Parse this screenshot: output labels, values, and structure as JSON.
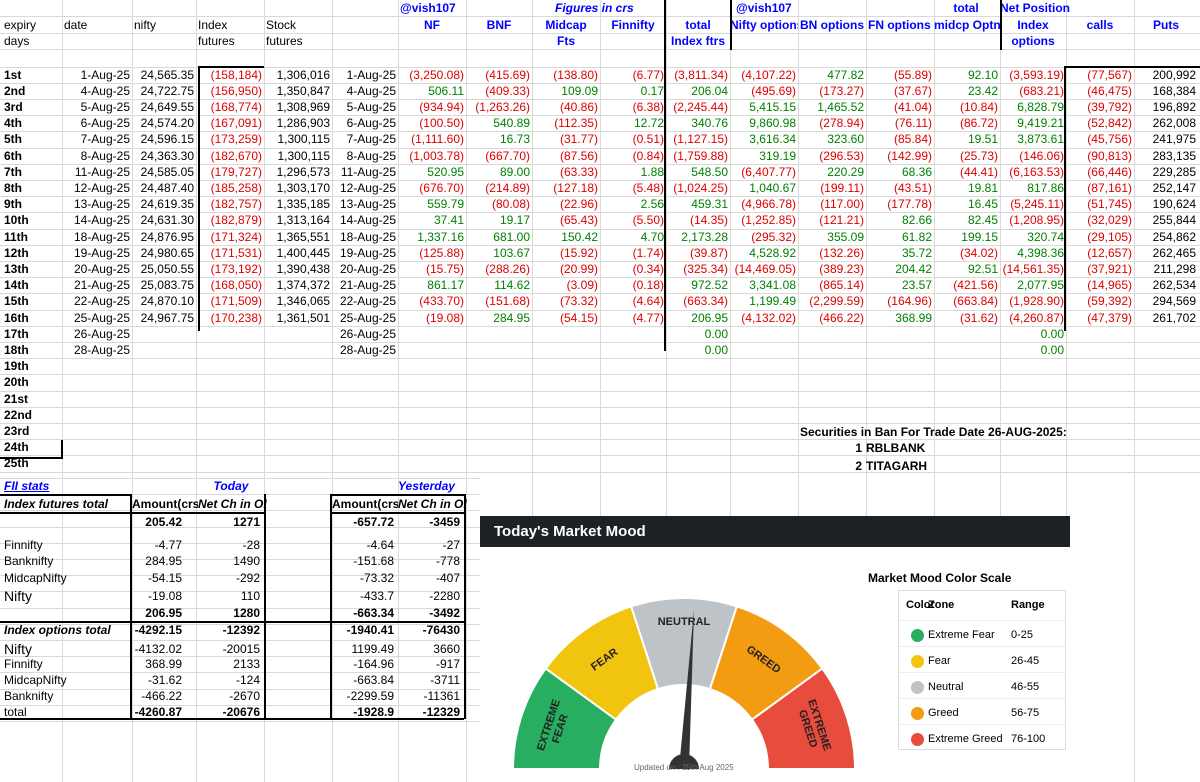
{
  "header_top": {
    "vish1": "@vish107",
    "figures": "Figures in crs",
    "vish2": "@vish107",
    "total": "total",
    "net_position": "Net Position"
  },
  "headers": {
    "expiry": "expiry",
    "days": "days",
    "date": "date",
    "nifty": "nifty",
    "index1": "Index",
    "index2": "futures",
    "stock1": "Stock",
    "stock2": "futures",
    "nf": "NF",
    "bnf": "BNF",
    "midcap1": "Midcap",
    "midcap2": "Fts",
    "finnifty": "Finnifty",
    "total1": "total",
    "total2": "Index ftrs",
    "nifty_opt": "Nifty options",
    "bn_opt": "BN options",
    "fn_opt": "FN options",
    "midcp_opt": "midcp Optns",
    "idx_opt1": "Index",
    "idx_opt2": "options",
    "calls": "calls",
    "puts": "Puts"
  },
  "rows": [
    {
      "label": "1st",
      "date": "1-Aug-25",
      "nifty": "24,565.35",
      "idx": "(158,184)",
      "stk": "1,306,016",
      "d2": "1-Aug-25",
      "nf": "(3,250.08)",
      "bnf": "(415.69)",
      "mid": "(138.80)",
      "fin": "(6.77)",
      "tot": "(3,811.34)",
      "nopt": "(4,107.22)",
      "bopt": "477.82",
      "fopt": "(55.89)",
      "mopt": "92.10",
      "iopt": "(3,593.19)",
      "calls": "(77,567)",
      "puts": "200,992"
    },
    {
      "label": "2nd",
      "date": "4-Aug-25",
      "nifty": "24,722.75",
      "idx": "(156,950)",
      "stk": "1,350,847",
      "d2": "4-Aug-25",
      "nf": "506.11",
      "bnf": "(409.33)",
      "mid": "109.09",
      "fin": "0.17",
      "tot": "206.04",
      "nopt": "(495.69)",
      "bopt": "(173.27)",
      "fopt": "(37.67)",
      "mopt": "23.42",
      "iopt": "(683.21)",
      "calls": "(46,475)",
      "puts": "168,384"
    },
    {
      "label": "3rd",
      "date": "5-Aug-25",
      "nifty": "24,649.55",
      "idx": "(168,774)",
      "stk": "1,308,969",
      "d2": "5-Aug-25",
      "nf": "(934.94)",
      "bnf": "(1,263.26)",
      "mid": "(40.86)",
      "fin": "(6.38)",
      "tot": "(2,245.44)",
      "nopt": "5,415.15",
      "bopt": "1,465.52",
      "fopt": "(41.04)",
      "mopt": "(10.84)",
      "iopt": "6,828.79",
      "calls": "(39,792)",
      "puts": "196,892"
    },
    {
      "label": "4th",
      "date": "6-Aug-25",
      "nifty": "24,574.20",
      "idx": "(167,091)",
      "stk": "1,286,903",
      "d2": "6-Aug-25",
      "nf": "(100.50)",
      "bnf": "540.89",
      "mid": "(112.35)",
      "fin": "12.72",
      "tot": "340.76",
      "nopt": "9,860.98",
      "bopt": "(278.94)",
      "fopt": "(76.11)",
      "mopt": "(86.72)",
      "iopt": "9,419.21",
      "calls": "(52,842)",
      "puts": "262,008"
    },
    {
      "label": "5th",
      "date": "7-Aug-25",
      "nifty": "24,596.15",
      "idx": "(173,259)",
      "stk": "1,300,115",
      "d2": "7-Aug-25",
      "nf": "(1,111.60)",
      "bnf": "16.73",
      "mid": "(31.77)",
      "fin": "(0.51)",
      "tot": "(1,127.15)",
      "nopt": "3,616.34",
      "bopt": "323.60",
      "fopt": "(85.84)",
      "mopt": "19.51",
      "iopt": "3,873.61",
      "calls": "(45,756)",
      "puts": "241,975"
    },
    {
      "label": "6th",
      "date": "8-Aug-25",
      "nifty": "24,363.30",
      "idx": "(182,670)",
      "stk": "1,300,115",
      "d2": "8-Aug-25",
      "nf": "(1,003.78)",
      "bnf": "(667.70)",
      "mid": "(87.56)",
      "fin": "(0.84)",
      "tot": "(1,759.88)",
      "nopt": "319.19",
      "bopt": "(296.53)",
      "fopt": "(142.99)",
      "mopt": "(25.73)",
      "iopt": "(146.06)",
      "calls": "(90,813)",
      "puts": "283,135"
    },
    {
      "label": "7th",
      "date": "11-Aug-25",
      "nifty": "24,585.05",
      "idx": "(179,727)",
      "stk": "1,296,573",
      "d2": "11-Aug-25",
      "nf": "520.95",
      "bnf": "89.00",
      "mid": "(63.33)",
      "fin": "1.88",
      "tot": "548.50",
      "nopt": "(6,407.77)",
      "bopt": "220.29",
      "fopt": "68.36",
      "mopt": "(44.41)",
      "iopt": "(6,163.53)",
      "calls": "(66,446)",
      "puts": "229,285"
    },
    {
      "label": "8th",
      "date": "12-Aug-25",
      "nifty": "24,487.40",
      "idx": "(185,258)",
      "stk": "1,303,170",
      "d2": "12-Aug-25",
      "nf": "(676.70)",
      "bnf": "(214.89)",
      "mid": "(127.18)",
      "fin": "(5.48)",
      "tot": "(1,024.25)",
      "nopt": "1,040.67",
      "bopt": "(199.11)",
      "fopt": "(43.51)",
      "mopt": "19.81",
      "iopt": "817.86",
      "calls": "(87,161)",
      "puts": "252,147"
    },
    {
      "label": "9th",
      "date": "13-Aug-25",
      "nifty": "24,619.35",
      "idx": "(182,757)",
      "stk": "1,335,185",
      "d2": "13-Aug-25",
      "nf": "559.79",
      "bnf": "(80.08)",
      "mid": "(22.96)",
      "fin": "2.56",
      "tot": "459.31",
      "nopt": "(4,966.78)",
      "bopt": "(117.00)",
      "fopt": "(177.78)",
      "mopt": "16.45",
      "iopt": "(5,245.11)",
      "calls": "(51,745)",
      "puts": "190,624"
    },
    {
      "label": "10th",
      "date": "14-Aug-25",
      "nifty": "24,631.30",
      "idx": "(182,879)",
      "stk": "1,313,164",
      "d2": "14-Aug-25",
      "nf": "37.41",
      "bnf": "19.17",
      "mid": "(65.43)",
      "fin": "(5.50)",
      "tot": "(14.35)",
      "nopt": "(1,252.85)",
      "bopt": "(121.21)",
      "fopt": "82.66",
      "mopt": "82.45",
      "iopt": "(1,208.95)",
      "calls": "(32,029)",
      "puts": "255,844"
    },
    {
      "label": "11th",
      "date": "18-Aug-25",
      "nifty": "24,876.95",
      "idx": "(171,324)",
      "stk": "1,365,551",
      "d2": "18-Aug-25",
      "nf": "1,337.16",
      "bnf": "681.00",
      "mid": "150.42",
      "fin": "4.70",
      "tot": "2,173.28",
      "nopt": "(295.32)",
      "bopt": "355.09",
      "fopt": "61.82",
      "mopt": "199.15",
      "iopt": "320.74",
      "calls": "(29,105)",
      "puts": "254,862"
    },
    {
      "label": "12th",
      "date": "19-Aug-25",
      "nifty": "24,980.65",
      "idx": "(171,531)",
      "stk": "1,400,445",
      "d2": "19-Aug-25",
      "nf": "(125.88)",
      "bnf": "103.67",
      "mid": "(15.92)",
      "fin": "(1.74)",
      "tot": "(39.87)",
      "nopt": "4,528.92",
      "bopt": "(132.26)",
      "fopt": "35.72",
      "mopt": "(34.02)",
      "iopt": "4,398.36",
      "calls": "(12,657)",
      "puts": "262,465"
    },
    {
      "label": "13th",
      "date": "20-Aug-25",
      "nifty": "25,050.55",
      "idx": "(173,192)",
      "stk": "1,390,438",
      "d2": "20-Aug-25",
      "nf": "(15.75)",
      "bnf": "(288.26)",
      "mid": "(20.99)",
      "fin": "(0.34)",
      "tot": "(325.34)",
      "nopt": "(14,469.05)",
      "bopt": "(389.23)",
      "fopt": "204.42",
      "mopt": "92.51",
      "iopt": "(14,561.35)",
      "calls": "(37,921)",
      "puts": "211,298"
    },
    {
      "label": "14th",
      "date": "21-Aug-25",
      "nifty": "25,083.75",
      "idx": "(168,050)",
      "stk": "1,374,372",
      "d2": "21-Aug-25",
      "nf": "861.17",
      "bnf": "114.62",
      "mid": "(3.09)",
      "fin": "(0.18)",
      "tot": "972.52",
      "nopt": "3,341.08",
      "bopt": "(865.14)",
      "fopt": "23.57",
      "mopt": "(421.56)",
      "iopt": "2,077.95",
      "calls": "(14,965)",
      "puts": "262,534"
    },
    {
      "label": "15th",
      "date": "22-Aug-25",
      "nifty": "24,870.10",
      "idx": "(171,509)",
      "stk": "1,346,065",
      "d2": "22-Aug-25",
      "nf": "(433.70)",
      "bnf": "(151.68)",
      "mid": "(73.32)",
      "fin": "(4.64)",
      "tot": "(663.34)",
      "nopt": "1,199.49",
      "bopt": "(2,299.59)",
      "fopt": "(164.96)",
      "mopt": "(663.84)",
      "iopt": "(1,928.90)",
      "calls": "(59,392)",
      "puts": "294,569"
    },
    {
      "label": "16th",
      "date": "25-Aug-25",
      "nifty": "24,967.75",
      "idx": "(170,238)",
      "stk": "1,361,501",
      "d2": "25-Aug-25",
      "nf": "(19.08)",
      "bnf": "284.95",
      "mid": "(54.15)",
      "fin": "(4.77)",
      "tot": "206.95",
      "nopt": "(4,132.02)",
      "bopt": "(466.22)",
      "fopt": "368.99",
      "mopt": "(31.62)",
      "iopt": "(4,260.87)",
      "calls": "(47,379)",
      "puts": "261,702"
    },
    {
      "label": "17th",
      "date": "26-Aug-25",
      "d2": "26-Aug-25",
      "tot": "0.00",
      "iopt": "0.00"
    },
    {
      "label": "18th",
      "date": "28-Aug-25",
      "d2": "28-Aug-25",
      "tot": "0.00",
      "iopt": "0.00"
    },
    {
      "label": "19th"
    },
    {
      "label": "20th"
    },
    {
      "label": "21st"
    },
    {
      "label": "22nd"
    },
    {
      "label": "23rd"
    },
    {
      "label": "24th"
    },
    {
      "label": "25th"
    }
  ],
  "ban": {
    "title": "Securities in Ban For Trade Date 26-AUG-2025:",
    "items": [
      {
        "num": "1",
        "name": "RBLBANK"
      },
      {
        "num": "2",
        "name": "TITAGARH"
      }
    ]
  },
  "fii": {
    "title": "FII stats",
    "today": "Today",
    "yesterday": "Yesterday",
    "col1": "Index futures total",
    "col_amt": "Amount(crs",
    "col_ch": "Net Ch in OI",
    "rows": [
      {
        "label": "",
        "t_amt": "205.42",
        "t_ch": "1271",
        "y_amt": "-657.72",
        "y_ch": "-3459"
      },
      {
        "label": "",
        "t_amt": "",
        "t_ch": "",
        "y_amt": "",
        "y_ch": ""
      },
      {
        "label": "Finnifty",
        "t_amt": "-4.77",
        "t_ch": "-28",
        "y_amt": "-4.64",
        "y_ch": "-27"
      },
      {
        "label": "Banknifty",
        "t_amt": "284.95",
        "t_ch": "1490",
        "y_amt": "-151.68",
        "y_ch": "-778"
      },
      {
        "label": "MidcapNifty",
        "t_amt": "-54.15",
        "t_ch": "-292",
        "y_amt": "-73.32",
        "y_ch": "-407"
      },
      {
        "label": "Nifty",
        "t_amt": "-19.08",
        "t_ch": "110",
        "y_amt": "-433.7",
        "y_ch": "-2280"
      },
      {
        "label": "",
        "t_amt": "206.95",
        "t_ch": "1280",
        "y_amt": "-663.34",
        "y_ch": "-3492"
      },
      {
        "label": "Index options total",
        "t_amt": "-4292.15",
        "t_ch": "-12392",
        "y_amt": "-1940.41",
        "y_ch": "-76430"
      },
      {
        "label": "Nifty",
        "t_amt": "-4132.02",
        "t_ch": "-20015",
        "y_amt": "1199.49",
        "y_ch": "3660"
      },
      {
        "label": "Finnifty",
        "t_amt": "368.99",
        "t_ch": "2133",
        "y_amt": "-164.96",
        "y_ch": "-917"
      },
      {
        "label": "MidcapNifty",
        "t_amt": "-31.62",
        "t_ch": "-124",
        "y_amt": "-663.84",
        "y_ch": "-3711"
      },
      {
        "label": "Banknifty",
        "t_amt": "-466.22",
        "t_ch": "-2670",
        "y_amt": "-2299.59",
        "y_ch": "-11361"
      },
      {
        "label": "total",
        "t_amt": "-4260.87",
        "t_ch": "-20676",
        "y_amt": "-1928.9",
        "y_ch": "-12329"
      }
    ]
  },
  "mood": {
    "header": "Today's Market Mood",
    "zones": [
      {
        "name": "EXTREME FEAR",
        "color": "#27ae60"
      },
      {
        "name": "FEAR",
        "color": "#f1c40f"
      },
      {
        "name": "NEUTRAL",
        "color": "#bdc3c7"
      },
      {
        "name": "GREED",
        "color": "#f39c12"
      },
      {
        "name": "EXTREME GREED",
        "color": "#e74c3c"
      }
    ],
    "needle_value": 52,
    "updated": "Updated on : 25th Aug 2025",
    "scale_title": "Market Mood Color Scale",
    "scale_headers": [
      "Color",
      "Zone",
      "Range"
    ],
    "scale": [
      {
        "zone": "Extreme Fear",
        "range": "0-25",
        "color": "#27ae60"
      },
      {
        "zone": "Fear",
        "range": "26-45",
        "color": "#f1c40f"
      },
      {
        "zone": "Neutral",
        "range": "46-55",
        "color": "#bdc3c7"
      },
      {
        "zone": "Greed",
        "range": "56-75",
        "color": "#f39c12"
      },
      {
        "zone": "Extreme Greed",
        "range": "76-100",
        "color": "#e74c3c"
      }
    ]
  }
}
